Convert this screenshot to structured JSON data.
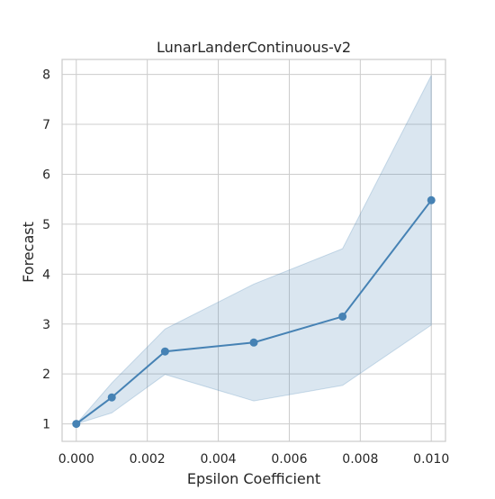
{
  "chart_data": {
    "type": "line",
    "title": "LunarLanderContinuous-v2",
    "xlabel": "Epsilon Coefficient",
    "ylabel": "Forecast",
    "xlim": [
      -0.0004,
      0.0104
    ],
    "ylim": [
      0.65,
      8.3
    ],
    "grid": true,
    "x_ticks": [
      0.0,
      0.002,
      0.004,
      0.006,
      0.008,
      0.01
    ],
    "x_tick_labels": [
      "0.000",
      "0.002",
      "0.004",
      "0.006",
      "0.008",
      "0.010"
    ],
    "y_ticks": [
      1,
      2,
      3,
      4,
      5,
      6,
      7,
      8
    ],
    "y_tick_labels": [
      "1",
      "2",
      "3",
      "4",
      "5",
      "6",
      "7",
      "8"
    ],
    "series": [
      {
        "x": [
          0.0,
          0.001,
          0.0025,
          0.005,
          0.0075,
          0.01
        ],
        "y": [
          1.0,
          1.53,
          2.45,
          2.63,
          3.15,
          5.48
        ],
        "lower": [
          1.0,
          1.22,
          1.99,
          1.46,
          1.77,
          2.98
        ],
        "upper": [
          1.0,
          1.82,
          2.9,
          3.8,
          4.51,
          7.98
        ],
        "color": "#4682b4",
        "band_color": "#4682b4"
      }
    ]
  }
}
